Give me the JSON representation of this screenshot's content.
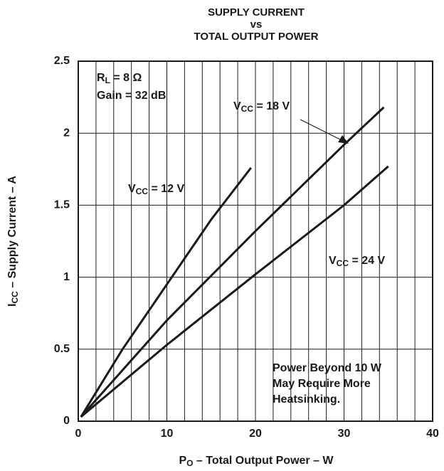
{
  "chart_data": {
    "type": "line",
    "title": [
      "SUPPLY CURRENT",
      "vs",
      "TOTAL OUTPUT POWER"
    ],
    "xlabel": {
      "main": "P",
      "sub": "O",
      "rest": " – Total Output Power – W"
    },
    "ylabel": {
      "main": "I",
      "sub": "CC",
      "rest": " – Supply Current – A"
    },
    "xlim": [
      0,
      40
    ],
    "ylim": [
      0,
      2.5
    ],
    "xticks": [
      0,
      10,
      20,
      30,
      40
    ],
    "yticks": [
      0,
      0.5,
      1,
      1.5,
      2,
      2.5
    ],
    "xgrid": [
      2,
      4,
      6,
      8,
      10,
      12,
      14,
      16,
      18,
      20,
      22,
      24,
      26,
      28,
      30,
      32,
      34,
      36,
      38
    ],
    "grid": true,
    "annotations": [
      {
        "main": "R",
        "sub": "L",
        "rest": " = 8 Ω"
      },
      {
        "main": "Gain = 32 dB"
      },
      {
        "main": "Power Beyond 10 W"
      },
      {
        "main": "May Require More"
      },
      {
        "main": "Heatsinking."
      }
    ],
    "series": [
      {
        "name": {
          "main": "V",
          "sub": "CC",
          "rest": " = 12 V"
        },
        "color": "#1a1a1a",
        "x": [
          0.3,
          5,
          10,
          15,
          19.5
        ],
        "values": [
          0.03,
          0.5,
          0.95,
          1.4,
          1.76
        ]
      },
      {
        "name": {
          "main": "V",
          "sub": "CC",
          "rest": " = 18 V"
        },
        "color": "#1a1a1a",
        "x": [
          0.3,
          10,
          20,
          30,
          34.5
        ],
        "values": [
          0.03,
          0.7,
          1.32,
          1.92,
          2.18
        ]
      },
      {
        "name": {
          "main": "V",
          "sub": "CC",
          "rest": " = 24 V"
        },
        "color": "#1a1a1a",
        "x": [
          0.3,
          10,
          20,
          30,
          35
        ],
        "values": [
          0.03,
          0.53,
          1.02,
          1.5,
          1.77
        ]
      }
    ]
  }
}
